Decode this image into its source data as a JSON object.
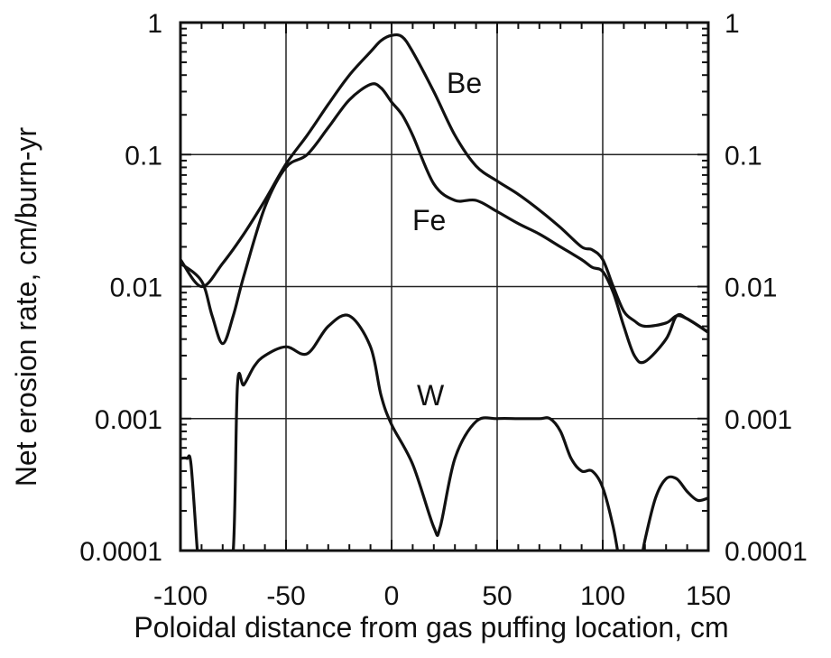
{
  "chart_data": {
    "type": "line",
    "title": "",
    "xlabel": "Poloidal distance from gas puffing location, cm",
    "ylabel": "Net erosion rate, cm/burn-yr",
    "xlim": [
      -100,
      150
    ],
    "ylim": [
      0.0001,
      1
    ],
    "y_scale": "log",
    "grid": true,
    "right_axis_mirrored": true,
    "x_ticks": [
      "-100",
      "-50",
      "0",
      "50",
      "100",
      "150"
    ],
    "y_ticks": [
      "0.0001",
      "0.001",
      "0.01",
      "0.1",
      "1"
    ],
    "y_ticks_right": [
      "0.0001",
      "0.001",
      "0.01",
      "0.1",
      "1"
    ],
    "series": [
      {
        "name": "Be",
        "x": [
          -100,
          -90,
          -80,
          -70,
          -60,
          -50,
          -40,
          -30,
          -20,
          -10,
          -5,
          0,
          5,
          10,
          20,
          30,
          40,
          50,
          60,
          70,
          80,
          90,
          95,
          100,
          105,
          110,
          115,
          120,
          130,
          135,
          140,
          150
        ],
        "y": [
          0.016,
          0.01,
          0.015,
          0.025,
          0.045,
          0.085,
          0.14,
          0.24,
          0.4,
          0.6,
          0.73,
          0.8,
          0.78,
          0.6,
          0.3,
          0.14,
          0.082,
          0.063,
          0.05,
          0.038,
          0.028,
          0.02,
          0.019,
          0.016,
          0.01,
          0.0065,
          0.0055,
          0.005,
          0.0053,
          0.006,
          0.0057,
          0.0045
        ]
      },
      {
        "name": "Fe",
        "x": [
          -100,
          -90,
          -85,
          -80,
          -75,
          -70,
          -60,
          -50,
          -40,
          -30,
          -20,
          -10,
          -5,
          0,
          5,
          10,
          20,
          30,
          40,
          50,
          60,
          70,
          80,
          90,
          95,
          100,
          105,
          110,
          115,
          120,
          130,
          135,
          140,
          150
        ],
        "y": [
          0.015,
          0.011,
          0.006,
          0.0037,
          0.006,
          0.012,
          0.04,
          0.08,
          0.1,
          0.16,
          0.26,
          0.34,
          0.32,
          0.25,
          0.2,
          0.14,
          0.06,
          0.045,
          0.045,
          0.037,
          0.03,
          0.025,
          0.02,
          0.016,
          0.014,
          0.013,
          0.009,
          0.005,
          0.003,
          0.0027,
          0.004,
          0.006,
          0.0057,
          0.0045
        ]
      },
      {
        "name": "W",
        "x": [
          -100,
          -97,
          -95,
          -92,
          -90,
          -80,
          -75,
          -73,
          -70,
          -65,
          -60,
          -50,
          -40,
          -30,
          -20,
          -10,
          -5,
          0,
          10,
          20,
          23,
          30,
          40,
          50,
          60,
          70,
          75,
          80,
          85,
          90,
          95,
          100,
          105,
          108,
          110,
          115,
          118,
          120,
          125,
          130,
          135,
          140,
          145,
          150
        ],
        "y": [
          0.0005,
          0.0005,
          0.00045,
          0.0001,
          5e-05,
          5e-05,
          0.0001,
          0.0018,
          0.0018,
          0.0025,
          0.003,
          0.0035,
          0.0031,
          0.005,
          0.006,
          0.0035,
          0.0015,
          0.0009,
          0.00045,
          0.00015,
          0.00015,
          0.0005,
          0.00095,
          0.001,
          0.001,
          0.001,
          0.001,
          0.0008,
          0.0005,
          0.0004,
          0.0004,
          0.0003,
          0.00015,
          8e-05,
          5e-05,
          5e-05,
          8e-05,
          0.00012,
          0.00025,
          0.00035,
          0.00035,
          0.00028,
          0.00024,
          0.00025
        ]
      }
    ]
  }
}
